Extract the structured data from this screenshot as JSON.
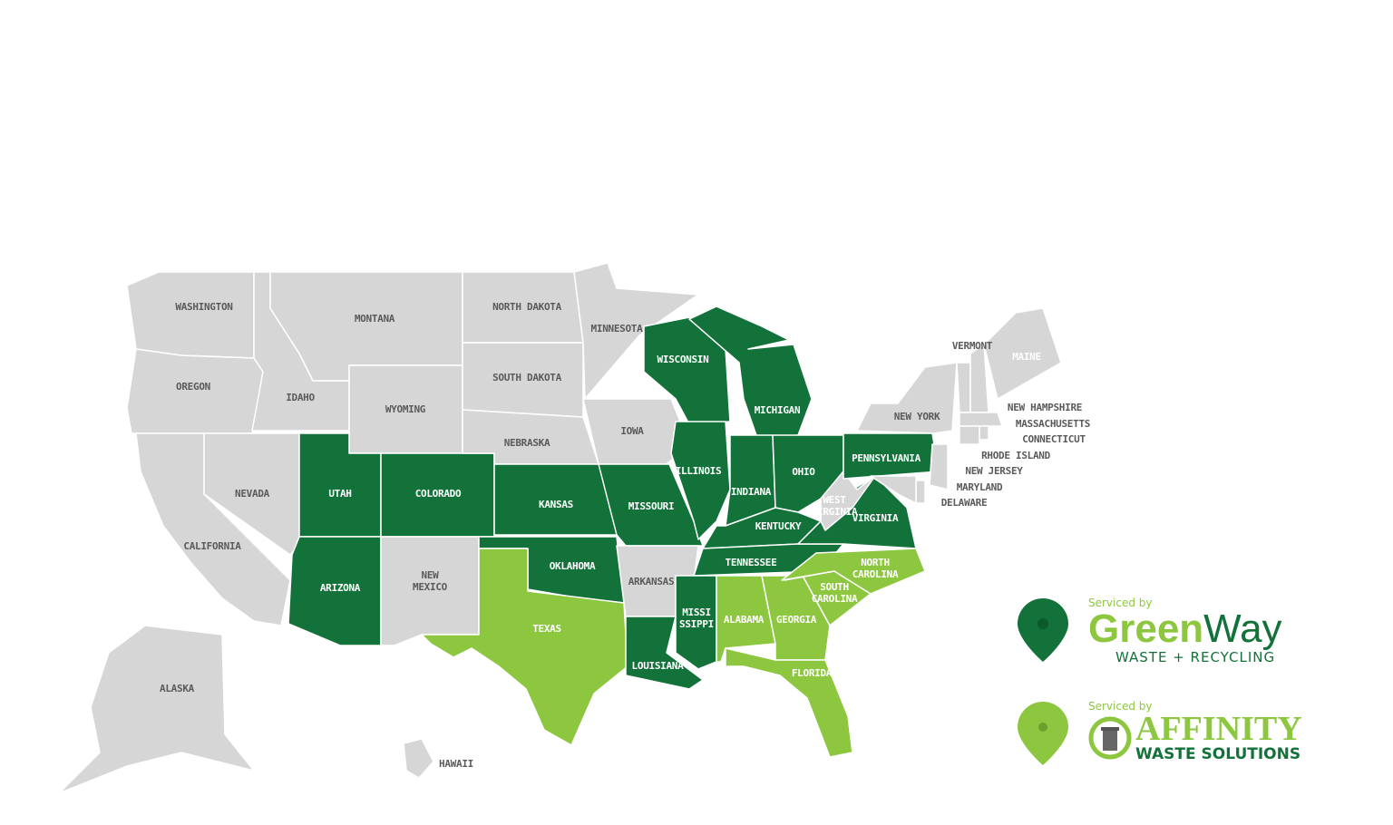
{
  "colors": {
    "greenway": "#137239",
    "affinity": "#8dc63f",
    "unserviced": "#d6d6d6",
    "label_gray": "#5a5a5a"
  },
  "states": [
    {
      "name": "WASHINGTON",
      "provider": "none"
    },
    {
      "name": "OREGON",
      "provider": "none"
    },
    {
      "name": "CALIFORNIA",
      "provider": "none"
    },
    {
      "name": "NEVADA",
      "provider": "none"
    },
    {
      "name": "IDAHO",
      "provider": "none"
    },
    {
      "name": "MONTANA",
      "provider": "none"
    },
    {
      "name": "WYOMING",
      "provider": "none"
    },
    {
      "name": "UTAH",
      "provider": "greenway"
    },
    {
      "name": "COLORADO",
      "provider": "greenway"
    },
    {
      "name": "ARIZONA",
      "provider": "greenway"
    },
    {
      "name": "NEW MEXICO",
      "provider": "none"
    },
    {
      "name": "NORTH DAKOTA",
      "provider": "none"
    },
    {
      "name": "SOUTH DAKOTA",
      "provider": "none"
    },
    {
      "name": "NEBRASKA",
      "provider": "none"
    },
    {
      "name": "KANSAS",
      "provider": "greenway"
    },
    {
      "name": "OKLAHOMA",
      "provider": "greenway"
    },
    {
      "name": "TEXAS",
      "provider": "affinity"
    },
    {
      "name": "MINNESOTA",
      "provider": "none"
    },
    {
      "name": "IOWA",
      "provider": "none"
    },
    {
      "name": "MISSOURI",
      "provider": "greenway"
    },
    {
      "name": "ARKANSAS",
      "provider": "none"
    },
    {
      "name": "LOUISIANA",
      "provider": "greenway"
    },
    {
      "name": "WISCONSIN",
      "provider": "greenway"
    },
    {
      "name": "ILLINOIS",
      "provider": "greenway"
    },
    {
      "name": "MICHIGAN",
      "provider": "greenway"
    },
    {
      "name": "INDIANA",
      "provider": "greenway"
    },
    {
      "name": "OHIO",
      "provider": "greenway"
    },
    {
      "name": "KENTUCKY",
      "provider": "greenway"
    },
    {
      "name": "TENNESSEE",
      "provider": "greenway"
    },
    {
      "name": "MISSI SSIPPI",
      "provider": "greenway"
    },
    {
      "name": "ALABAMA",
      "provider": "affinity"
    },
    {
      "name": "GEORGIA",
      "provider": "affinity"
    },
    {
      "name": "FLORIDA",
      "provider": "affinity"
    },
    {
      "name": "SOUTH CAROLINA",
      "provider": "affinity"
    },
    {
      "name": "NORTH CAROLINA",
      "provider": "affinity"
    },
    {
      "name": "VIRGINIA",
      "provider": "greenway"
    },
    {
      "name": "WEST VIRGINIA",
      "provider": "none"
    },
    {
      "name": "PENNSYLVANIA",
      "provider": "greenway"
    },
    {
      "name": "NEW YORK",
      "provider": "none"
    },
    {
      "name": "VERMONT",
      "provider": "none"
    },
    {
      "name": "NEW HAMPSHIRE",
      "provider": "none"
    },
    {
      "name": "MAINE",
      "provider": "none"
    },
    {
      "name": "MASSACHUSETTS",
      "provider": "none"
    },
    {
      "name": "CONNECTICUT",
      "provider": "none"
    },
    {
      "name": "RHODE ISLAND",
      "provider": "none"
    },
    {
      "name": "NEW JERSEY",
      "provider": "none"
    },
    {
      "name": "DELAWARE",
      "provider": "none"
    },
    {
      "name": "MARYLAND",
      "provider": "none"
    },
    {
      "name": "ALASKA",
      "provider": "none"
    },
    {
      "name": "HAWAII",
      "provider": "none"
    }
  ],
  "legend": {
    "greenway": {
      "serviced_by": "Serviced by",
      "brand_a": "Green",
      "brand_b": "Way",
      "tagline": "WASTE + RECYCLING",
      "icon": "map-pin-icon"
    },
    "affinity": {
      "serviced_by": "Serviced by",
      "brand": "AFFINITY",
      "tagline": "WASTE SOLUTIONS",
      "icon": "map-pin-icon",
      "logo_icon": "trash-can-recycle-icon"
    }
  }
}
